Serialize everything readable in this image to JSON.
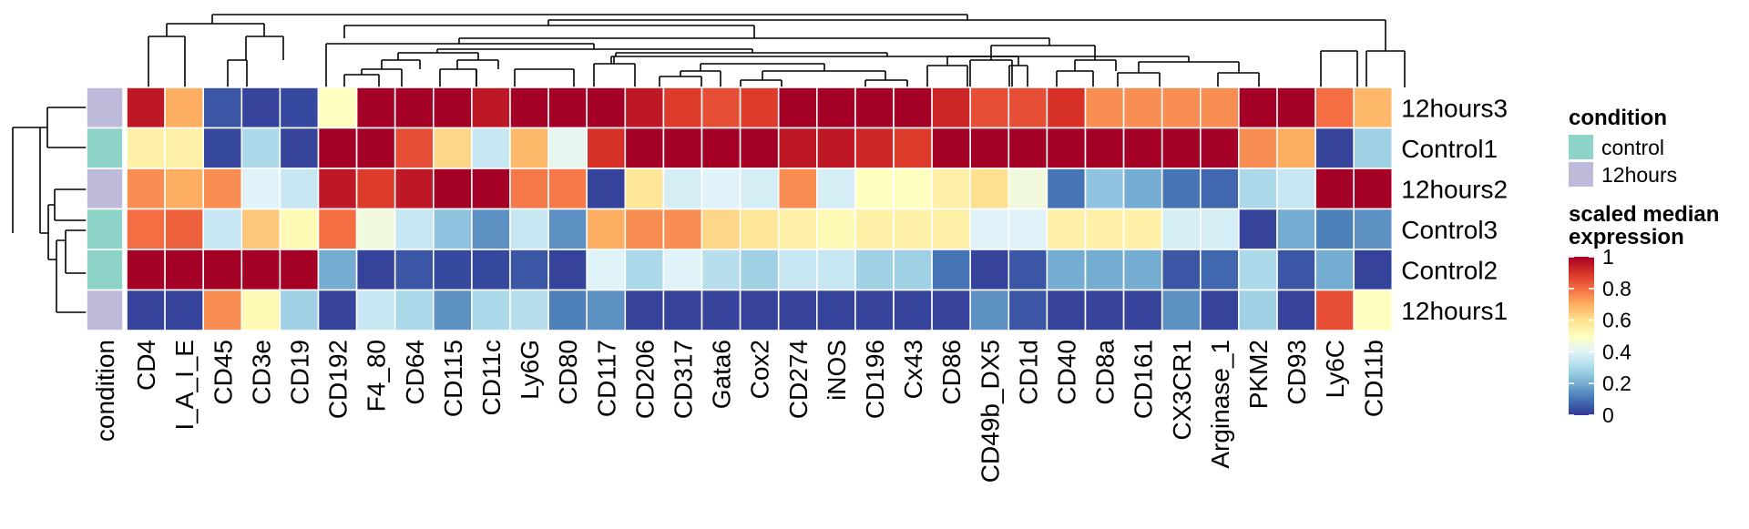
{
  "chart_data": {
    "type": "heatmap",
    "rows": [
      "12hours3",
      "Control1",
      "12hours2",
      "Control3",
      "Control2",
      "12hours1"
    ],
    "columns": [
      "CD4",
      "I_A_I_E",
      "CD45",
      "CD3e",
      "CD19",
      "CD192",
      "F4_80",
      "CD64",
      "CD115",
      "CD11c",
      "Ly6G",
      "CD80",
      "CD117",
      "CD206",
      "CD317",
      "Gata6",
      "Cox2",
      "CD274",
      "iNOS",
      "CD196",
      "Cx43",
      "CD86",
      "CD49b_DX5",
      "CD1d",
      "CD40",
      "CD8a",
      "CD161",
      "CX3CR1",
      "Arginase_1",
      "PKM2",
      "CD93",
      "Ly6C",
      "CD11b"
    ],
    "condition_column_label": "condition",
    "row_conditions": [
      "12hours",
      "control",
      "12hours",
      "control",
      "control",
      "12hours"
    ],
    "values": [
      [
        0.95,
        0.7,
        0.05,
        0.02,
        0.03,
        0.5,
        1.0,
        1.0,
        1.0,
        0.95,
        1.0,
        1.0,
        1.0,
        0.95,
        0.88,
        0.85,
        0.88,
        1.0,
        1.0,
        1.0,
        1.0,
        0.92,
        0.85,
        0.85,
        0.9,
        0.75,
        0.75,
        0.75,
        0.75,
        1.0,
        1.0,
        0.8,
        0.68
      ],
      [
        0.55,
        0.55,
        0.03,
        0.3,
        0.02,
        1.0,
        1.0,
        0.85,
        0.62,
        0.35,
        0.68,
        0.42,
        0.9,
        1.0,
        1.0,
        1.0,
        1.0,
        0.95,
        0.95,
        0.92,
        0.88,
        1.0,
        1.0,
        1.0,
        1.0,
        1.0,
        1.0,
        1.0,
        1.0,
        0.75,
        0.7,
        0.02,
        0.28
      ],
      [
        0.75,
        0.7,
        0.75,
        0.4,
        0.35,
        0.95,
        0.88,
        0.95,
        1.0,
        1.0,
        0.78,
        0.78,
        0.02,
        0.58,
        0.38,
        0.4,
        0.38,
        0.75,
        0.38,
        0.5,
        0.5,
        0.55,
        0.6,
        0.45,
        0.1,
        0.25,
        0.2,
        0.1,
        0.08,
        0.3,
        0.35,
        1.0,
        1.0
      ],
      [
        0.8,
        0.82,
        0.35,
        0.65,
        0.52,
        0.8,
        0.45,
        0.35,
        0.25,
        0.15,
        0.35,
        0.15,
        0.7,
        0.75,
        0.75,
        0.62,
        0.58,
        0.55,
        0.52,
        0.55,
        0.55,
        0.55,
        0.4,
        0.4,
        0.55,
        0.55,
        0.55,
        0.38,
        0.38,
        0.02,
        0.2,
        0.12,
        0.15
      ],
      [
        1.0,
        1.0,
        1.0,
        1.0,
        1.0,
        0.2,
        0.02,
        0.05,
        0.03,
        0.03,
        0.05,
        0.02,
        0.4,
        0.3,
        0.4,
        0.32,
        0.28,
        0.35,
        0.35,
        0.28,
        0.28,
        0.1,
        0.02,
        0.05,
        0.2,
        0.2,
        0.2,
        0.05,
        0.08,
        0.3,
        0.05,
        0.2,
        0.02
      ],
      [
        0.02,
        0.02,
        0.75,
        0.52,
        0.28,
        0.02,
        0.35,
        0.3,
        0.15,
        0.3,
        0.32,
        0.12,
        0.15,
        0.02,
        0.02,
        0.02,
        0.02,
        0.02,
        0.02,
        0.02,
        0.02,
        0.02,
        0.15,
        0.05,
        0.02,
        0.02,
        0.02,
        0.15,
        0.02,
        0.28,
        0.02,
        0.85,
        0.5
      ]
    ],
    "legend": {
      "condition_title": "condition",
      "condition_items": [
        {
          "label": "control",
          "color": "#8dd3c7"
        },
        {
          "label": "12hours",
          "color": "#bebada"
        }
      ],
      "scale_title_line1": "scaled median",
      "scale_title_line2": "expression",
      "scale_ticks": [
        1,
        0.8,
        0.6,
        0.4,
        0.2,
        0
      ],
      "scale_tick_labels": [
        "1",
        "0.8",
        "0.6",
        "0.4",
        "0.2",
        "0"
      ]
    },
    "colorscale": [
      "#313695",
      "#4575b4",
      "#74add1",
      "#abd9e9",
      "#e0f3f8",
      "#ffffbf",
      "#fee090",
      "#fdae61",
      "#f46d43",
      "#d73027",
      "#a50026"
    ],
    "value_range": [
      0,
      1
    ]
  }
}
